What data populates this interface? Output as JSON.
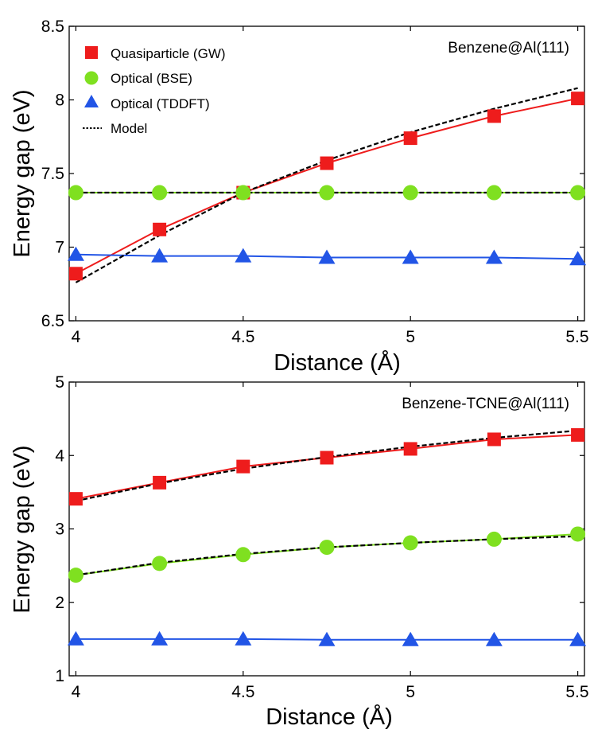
{
  "chart_data": [
    {
      "type": "line",
      "annotation": "Benzene@Al(111)",
      "xlabel": "Distance (Å)",
      "ylabel": "Energy gap (eV)",
      "xlim": [
        3.98,
        5.52
      ],
      "ylim": [
        6.5,
        8.5
      ],
      "xticks": [
        "4",
        "4.5",
        "5",
        "5.5"
      ],
      "yticks": [
        "6.5",
        "7",
        "7.5",
        "8",
        "8.5"
      ],
      "legend_position": "top-left",
      "legend": [
        {
          "label": "Quasiparticle (GW)",
          "marker": "square",
          "color": "#ee1c1c"
        },
        {
          "label": "Optical (BSE)",
          "marker": "circle",
          "color": "#7fe020"
        },
        {
          "label": "Optical (TDDFT)",
          "marker": "triangle",
          "color": "#2255e6"
        },
        {
          "label": "Model",
          "marker": "dotted-line",
          "color": "#000000"
        }
      ],
      "x": [
        4.0,
        4.25,
        4.5,
        4.75,
        5.0,
        5.25,
        5.5
      ],
      "series": [
        {
          "name": "Quasiparticle (GW)",
          "marker": "square",
          "color": "#ee1c1c",
          "line": true,
          "values": [
            6.82,
            7.12,
            7.37,
            7.57,
            7.74,
            7.89,
            8.01
          ]
        },
        {
          "name": "Optical (BSE)",
          "marker": "circle",
          "color": "#7fe020",
          "line": true,
          "values": [
            7.37,
            7.37,
            7.37,
            7.37,
            7.37,
            7.37,
            7.37
          ]
        },
        {
          "name": "Optical (TDDFT)",
          "marker": "triangle",
          "color": "#2255e6",
          "line": true,
          "values": [
            6.95,
            6.94,
            6.94,
            6.93,
            6.93,
            6.93,
            6.92
          ]
        }
      ],
      "model_curves": [
        {
          "x": [
            4.0,
            4.25,
            4.5,
            4.75,
            5.0,
            5.25,
            5.5
          ],
          "values": [
            6.76,
            7.08,
            7.37,
            7.59,
            7.78,
            7.94,
            8.08
          ]
        },
        {
          "x": [
            4.0,
            5.5
          ],
          "values": [
            7.37,
            7.37
          ]
        }
      ]
    },
    {
      "type": "line",
      "annotation": "Benzene-TCNE@Al(111)",
      "xlabel": "Distance (Å)",
      "ylabel": "Energy gap (eV)",
      "xlim": [
        3.98,
        5.52
      ],
      "ylim": [
        1,
        5
      ],
      "xticks": [
        "4",
        "4.5",
        "5",
        "5.5"
      ],
      "yticks": [
        "1",
        "2",
        "3",
        "4",
        "5"
      ],
      "x": [
        4.0,
        4.25,
        4.5,
        4.75,
        5.0,
        5.25,
        5.5
      ],
      "series": [
        {
          "name": "Quasiparticle (GW)",
          "marker": "square",
          "color": "#ee1c1c",
          "line": true,
          "values": [
            3.41,
            3.63,
            3.85,
            3.97,
            4.09,
            4.22,
            4.28
          ]
        },
        {
          "name": "Optical (BSE)",
          "marker": "circle",
          "color": "#7fe020",
          "line": true,
          "values": [
            2.37,
            2.53,
            2.65,
            2.75,
            2.81,
            2.86,
            2.93
          ]
        },
        {
          "name": "Optical (TDDFT)",
          "marker": "triangle",
          "color": "#2255e6",
          "line": true,
          "values": [
            1.5,
            1.5,
            1.5,
            1.49,
            1.49,
            1.49,
            1.49
          ]
        }
      ],
      "model_curves": [
        {
          "x": [
            4.0,
            4.25,
            4.5,
            4.75,
            5.0,
            5.25,
            5.5
          ],
          "values": [
            3.38,
            3.62,
            3.82,
            3.98,
            4.12,
            4.24,
            4.34
          ]
        },
        {
          "x": [
            4.0,
            4.25,
            4.5,
            4.75,
            5.0,
            5.25,
            5.5
          ],
          "values": [
            2.37,
            2.54,
            2.66,
            2.75,
            2.81,
            2.86,
            2.9
          ]
        }
      ]
    }
  ]
}
